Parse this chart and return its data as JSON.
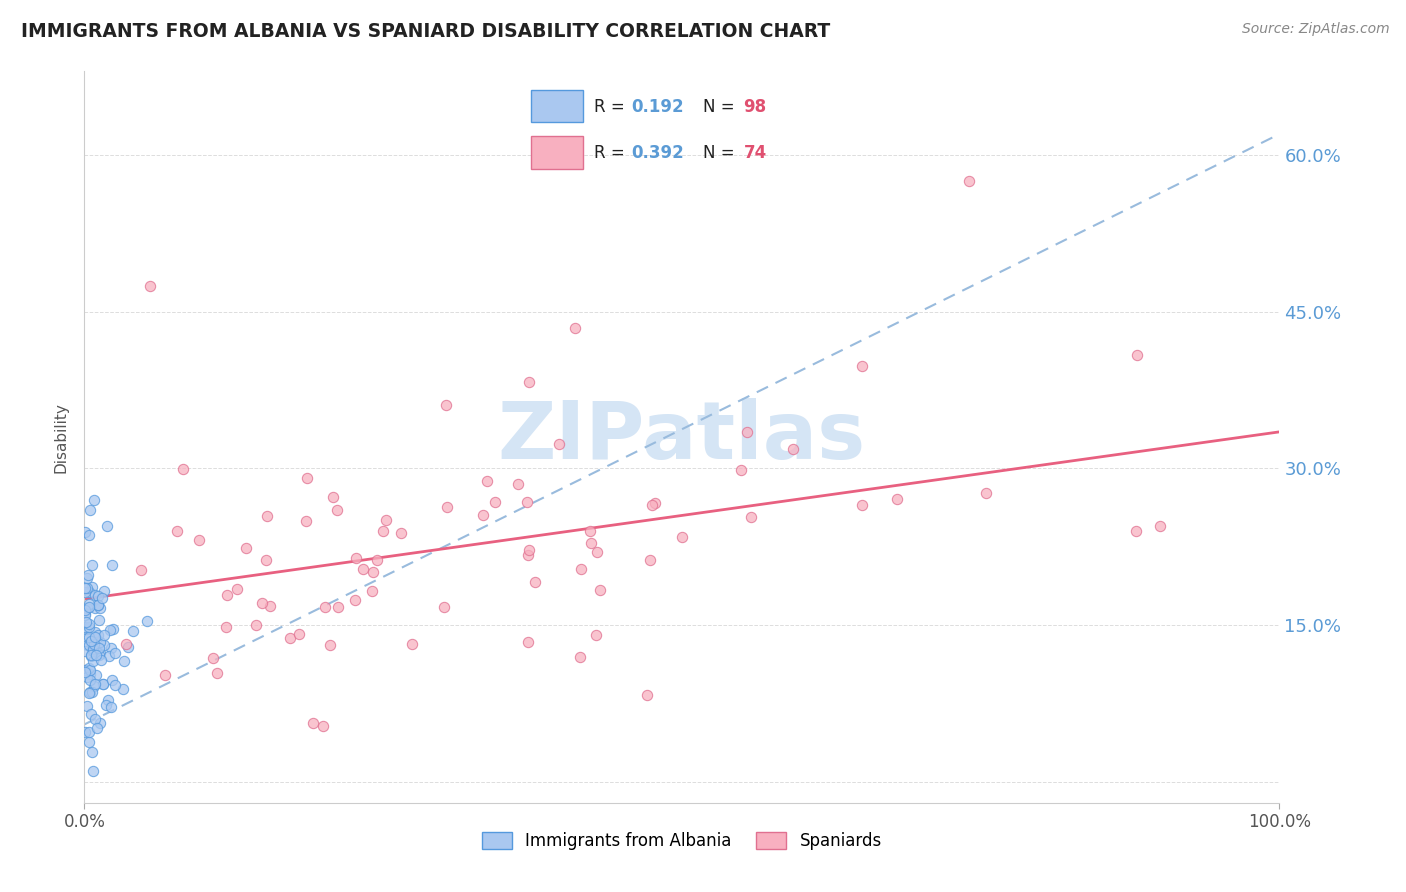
{
  "title": "IMMIGRANTS FROM ALBANIA VS SPANIARD DISABILITY CORRELATION CHART",
  "source_text": "Source: ZipAtlas.com",
  "ylabel": "Disability",
  "yticks": [
    0.0,
    0.15,
    0.3,
    0.45,
    0.6
  ],
  "ytick_labels": [
    "",
    "15.0%",
    "30.0%",
    "45.0%",
    "60.0%"
  ],
  "xrange": [
    0.0,
    1.0
  ],
  "yrange": [
    -0.02,
    0.68
  ],
  "albania_R": 0.192,
  "albania_N": 98,
  "spaniard_R": 0.392,
  "spaniard_N": 74,
  "albania_color": "#aac8f0",
  "albania_edge": "#5599dd",
  "spaniard_color": "#f8b0c0",
  "spaniard_edge": "#e07090",
  "albania_trend_color": "#99bbdd",
  "spaniard_trend_color": "#e86080",
  "watermark_color": "#d5e5f5",
  "title_color": "#222222",
  "source_color": "#888888",
  "tick_color": "#5b9bd5",
  "grid_color": "#dddddd",
  "legend_R_color": "#5b9bd5",
  "legend_N_color": "#e05070",
  "albania_trend_y0": 0.055,
  "albania_trend_y1": 0.62,
  "spaniard_trend_y0": 0.175,
  "spaniard_trend_y1": 0.335
}
